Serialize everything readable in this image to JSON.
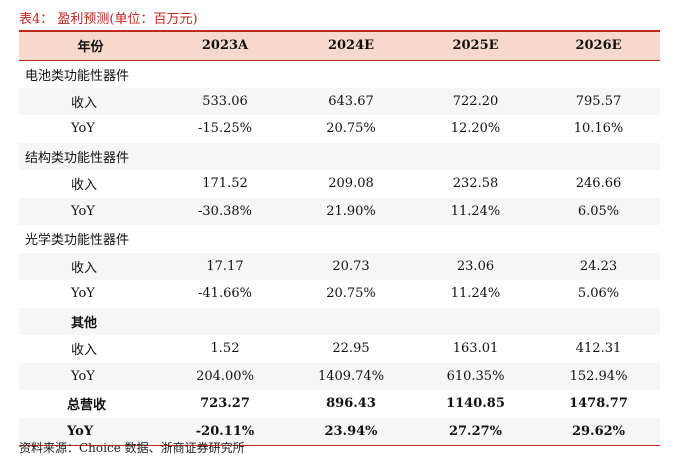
{
  "caption": "表4：  盈利预测(单位：百万元)",
  "header": [
    "年份",
    "2023A",
    "2024E",
    "2025E",
    "2026E"
  ],
  "rows": [
    {
      "type": "section",
      "label": "电池类功能性器件",
      "values": [
        "",
        "",
        "",
        ""
      ]
    },
    {
      "type": "sub",
      "label": "收入",
      "values": [
        "533.06",
        "643.67",
        "722.20",
        "795.57"
      ]
    },
    {
      "type": "sub",
      "label": "YoY",
      "values": [
        "-15.25%",
        "20.75%",
        "12.20%",
        "10.16%"
      ]
    },
    {
      "type": "section",
      "label": "结构类功能性器件",
      "values": [
        "",
        "",
        "",
        ""
      ]
    },
    {
      "type": "sub",
      "label": "收入",
      "values": [
        "171.52",
        "209.08",
        "232.58",
        "246.66"
      ]
    },
    {
      "type": "sub",
      "label": "YoY",
      "values": [
        "-30.38%",
        "21.90%",
        "11.24%",
        "6.05%"
      ]
    },
    {
      "type": "section",
      "label": "光学类功能性器件",
      "values": [
        "",
        "",
        "",
        ""
      ]
    },
    {
      "type": "sub",
      "label": "收入",
      "values": [
        "17.17",
        "20.73",
        "23.06",
        "24.23"
      ]
    },
    {
      "type": "sub",
      "label": "YoY",
      "values": [
        "-41.66%",
        "20.75%",
        "11.24%",
        "5.06%"
      ]
    },
    {
      "type": "section-indent",
      "label": "其他",
      "values": [
        "",
        "",
        "",
        ""
      ]
    },
    {
      "type": "sub",
      "label": "收入",
      "values": [
        "1.52",
        "22.95",
        "163.01",
        "412.31"
      ]
    },
    {
      "type": "sub",
      "label": "YoY",
      "values": [
        "204.00%",
        "1409.74%",
        "610.35%",
        "152.94%"
      ]
    },
    {
      "type": "total",
      "label": "总营收",
      "values": [
        "723.27",
        "896.43",
        "1140.85",
        "1478.77"
      ]
    },
    {
      "type": "total",
      "label": "YoY",
      "values": [
        "-20.11%",
        "23.94%",
        "27.27%",
        "29.62%"
      ]
    }
  ],
  "source": "资料来源：Choice 数据、浙商证券研究所",
  "colors": {
    "accent": "#c0271f",
    "header_bg": "#f6d9cc",
    "shade_bg": "#f6f6f6"
  }
}
